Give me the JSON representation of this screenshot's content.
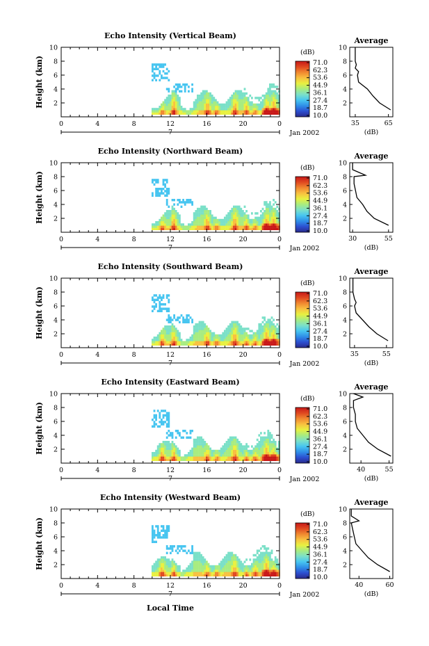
{
  "figure": {
    "x_label": "Local Time",
    "date_label": "Jan 2002",
    "day_label": "7",
    "x_ticks": [
      "0",
      "4",
      "8",
      "12",
      "16",
      "20",
      "0"
    ],
    "colorbar_unit": "(dB)",
    "colorbar_ticks": [
      "71.0",
      "62.3",
      "53.6",
      "44.9",
      "36.1",
      "27.4",
      "18.7",
      "10.0"
    ],
    "profile_title": "Average",
    "profile_xlabel": "(dB)",
    "y_label": "Height (km)",
    "y_ticks": [
      "2",
      "4",
      "6",
      "8",
      "10"
    ]
  },
  "colors": {
    "scale": [
      "#2a2a8c",
      "#2c4fd0",
      "#2f8fe8",
      "#47c5f0",
      "#7be0c8",
      "#a8ec80",
      "#e8f040",
      "#f8c040",
      "#f08830",
      "#e04820",
      "#c81818"
    ]
  },
  "chart_data": [
    {
      "type": "heatmap",
      "title": "Echo Intensity (Vertical Beam)",
      "ylabel": "Height (km)",
      "xlabel": "Local Time",
      "x_range_hours": [
        0,
        24
      ],
      "y_range_km": [
        0,
        10
      ],
      "color_range_db": [
        10.0,
        71.0
      ],
      "echo_onset_hour": 9.8,
      "convective_cores_hours": [
        11,
        12.3,
        16,
        17,
        19,
        20.3,
        21.2,
        22.5,
        23.3
      ],
      "profile": {
        "title": "Average",
        "xlabel": "(dB)",
        "x_ticks": [
          "35",
          "65"
        ],
        "xlim": [
          30,
          69
        ],
        "height_km": [
          1.0,
          2.0,
          3.0,
          4.0,
          5.0,
          6.0,
          6.5,
          7.0,
          7.5,
          8.0,
          9.0,
          10.0
        ],
        "values_db": [
          67,
          57,
          51,
          46,
          38,
          37,
          38,
          35,
          36,
          35,
          35,
          35
        ]
      }
    },
    {
      "type": "heatmap",
      "title": "Echo Intensity (Northward Beam)",
      "ylabel": "Height (km)",
      "xlabel": "Local Time",
      "x_range_hours": [
        0,
        24
      ],
      "y_range_km": [
        0,
        10
      ],
      "color_range_db": [
        10.0,
        71.0
      ],
      "echo_onset_hour": 9.8,
      "convective_cores_hours": [
        11,
        12.3,
        16,
        17,
        19,
        20.3,
        21.2,
        22.5,
        23.3
      ],
      "profile": {
        "title": "Average",
        "xlabel": "(dB)",
        "x_ticks": [
          "30",
          "55"
        ],
        "xlim": [
          28,
          58
        ],
        "height_km": [
          1.0,
          2.0,
          3.0,
          4.0,
          5.0,
          6.0,
          7.0,
          8.0,
          8.2,
          9.0,
          10.0
        ],
        "values_db": [
          55,
          45,
          40,
          37,
          33,
          32,
          31,
          31,
          39,
          30,
          30
        ]
      }
    },
    {
      "type": "heatmap",
      "title": "Echo Intensity (Southward Beam)",
      "ylabel": "Height (km)",
      "xlabel": "Local Time",
      "x_range_hours": [
        0,
        24
      ],
      "y_range_km": [
        0,
        10
      ],
      "color_range_db": [
        10.0,
        71.0
      ],
      "echo_onset_hour": 9.8,
      "convective_cores_hours": [
        11,
        12.3,
        16,
        17,
        19,
        20.3,
        21.2,
        22.5,
        23.3
      ],
      "profile": {
        "title": "Average",
        "xlabel": "(dB)",
        "x_ticks": [
          "35",
          "55"
        ],
        "xlim": [
          32,
          59
        ],
        "height_km": [
          1.0,
          2.0,
          3.0,
          4.0,
          5.0,
          6.0,
          6.5,
          7.0,
          8.0,
          9.0,
          10.0
        ],
        "values_db": [
          56,
          49,
          44,
          40,
          36,
          35,
          36,
          35,
          34,
          34,
          34
        ]
      }
    },
    {
      "type": "heatmap",
      "title": "Echo Intensity (Eastward Beam)",
      "ylabel": "Height (km)",
      "xlabel": "Local Time",
      "x_range_hours": [
        0,
        24
      ],
      "y_range_km": [
        0,
        10
      ],
      "color_range_db": [
        10.0,
        71.0
      ],
      "echo_onset_hour": 9.8,
      "convective_cores_hours": [
        11,
        12.3,
        16,
        17,
        19,
        20.3,
        21.2,
        22.5,
        23.3
      ],
      "profile": {
        "title": "Average",
        "xlabel": "(dB)",
        "x_ticks": [
          "40",
          "55"
        ],
        "xlim": [
          34,
          57
        ],
        "height_km": [
          1.0,
          2.0,
          3.0,
          4.0,
          5.0,
          6.0,
          7.0,
          8.0,
          9.0,
          9.5,
          10.0
        ],
        "values_db": [
          56,
          49,
          44,
          41,
          38,
          37,
          37,
          36,
          36,
          41,
          36
        ]
      }
    },
    {
      "type": "heatmap",
      "title": "Echo Intensity (Westward Beam)",
      "ylabel": "Height (km)",
      "xlabel": "Local Time",
      "x_range_hours": [
        0,
        24
      ],
      "y_range_km": [
        0,
        10
      ],
      "color_range_db": [
        10.0,
        71.0
      ],
      "echo_onset_hour": 9.8,
      "convective_cores_hours": [
        11,
        12.3,
        16,
        17,
        19,
        20.3,
        21.2,
        22.5,
        23.3
      ],
      "profile": {
        "title": "Average",
        "xlabel": "(dB)",
        "x_ticks": [
          "40",
          "60"
        ],
        "xlim": [
          34,
          62
        ],
        "height_km": [
          1.0,
          2.0,
          3.0,
          4.0,
          5.0,
          6.0,
          7.0,
          8.0,
          8.3,
          9.0,
          10.0
        ],
        "values_db": [
          60,
          52,
          46,
          42,
          38,
          37,
          36,
          35,
          40,
          35,
          35
        ]
      }
    }
  ]
}
